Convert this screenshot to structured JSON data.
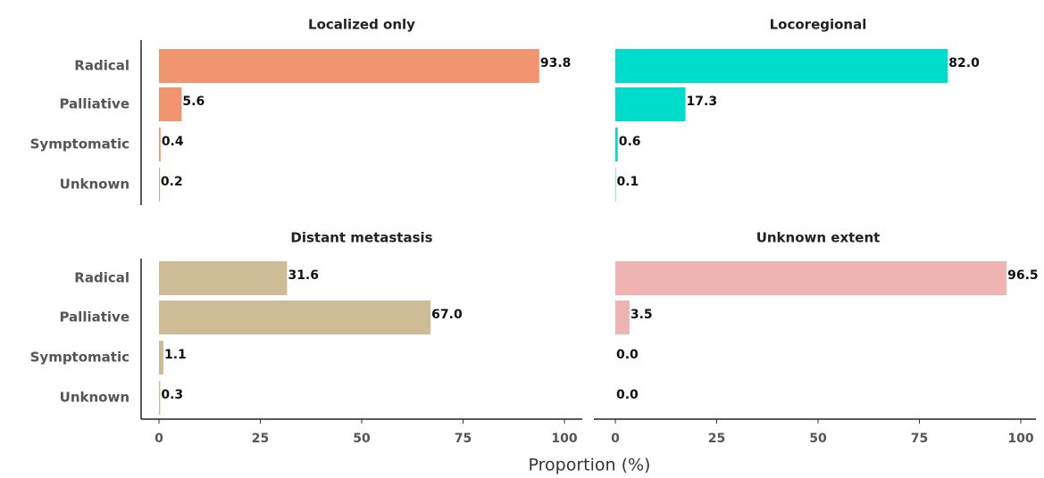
{
  "chart_data": {
    "type": "bar",
    "orientation": "horizontal",
    "xlabel": "Proportion (%)",
    "categories": [
      "Radical",
      "Palliative",
      "Symptomatic",
      "Unknown"
    ],
    "xlim": [
      0,
      100
    ],
    "xticks": [
      0,
      25,
      50,
      75,
      100
    ],
    "panels": [
      {
        "title": "Localized only",
        "color": "#F0956F",
        "values": [
          93.8,
          5.6,
          0.4,
          0.2
        ],
        "value_labels": [
          "93.8",
          "5.6",
          "0.4",
          "0.2"
        ]
      },
      {
        "title": "Locoregional",
        "color": "#00DCCB",
        "values": [
          82.0,
          17.3,
          0.6,
          0.1
        ],
        "value_labels": [
          "82.0",
          "17.3",
          "0.6",
          "0.1"
        ]
      },
      {
        "title": "Distant metastasis",
        "color": "#CDBC96",
        "values": [
          31.6,
          67.0,
          1.1,
          0.3
        ],
        "value_labels": [
          "31.6",
          "67.0",
          "1.1",
          "0.3"
        ]
      },
      {
        "title": "Unknown extent",
        "color": "#F0B3B4",
        "values": [
          96.5,
          3.5,
          0.0,
          0.0
        ],
        "value_labels": [
          "96.5",
          "3.5",
          "0.0",
          "0.0"
        ]
      }
    ]
  }
}
